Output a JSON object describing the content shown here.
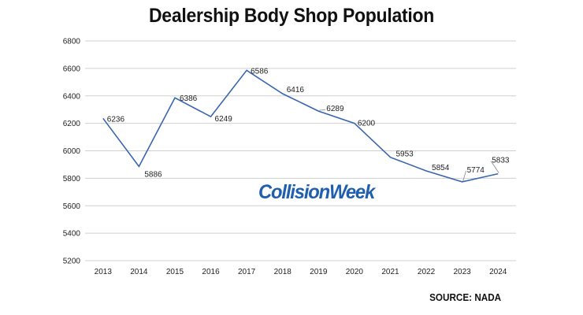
{
  "chart_data": {
    "type": "line",
    "title": "Dealership Body Shop Population",
    "xlabel": "",
    "ylabel": "",
    "categories": [
      "2013",
      "2014",
      "2015",
      "2016",
      "2017",
      "2018",
      "2019",
      "2020",
      "2021",
      "2022",
      "2023",
      "2024"
    ],
    "series": [
      {
        "values": [
          6236,
          5886,
          6386,
          6249,
          6586,
          6416,
          6289,
          6200,
          5953,
          5854,
          5774,
          5833
        ]
      }
    ],
    "ylim": [
      5200,
      6800
    ],
    "yticks": [
      5200,
      5400,
      5600,
      5800,
      6000,
      6200,
      6400,
      6600,
      6800
    ],
    "grid": true,
    "line_color": "#3a66b0",
    "source": "SOURCE: NADA",
    "watermark": "CollisionWeek",
    "watermark_color": "#1f5fae"
  }
}
